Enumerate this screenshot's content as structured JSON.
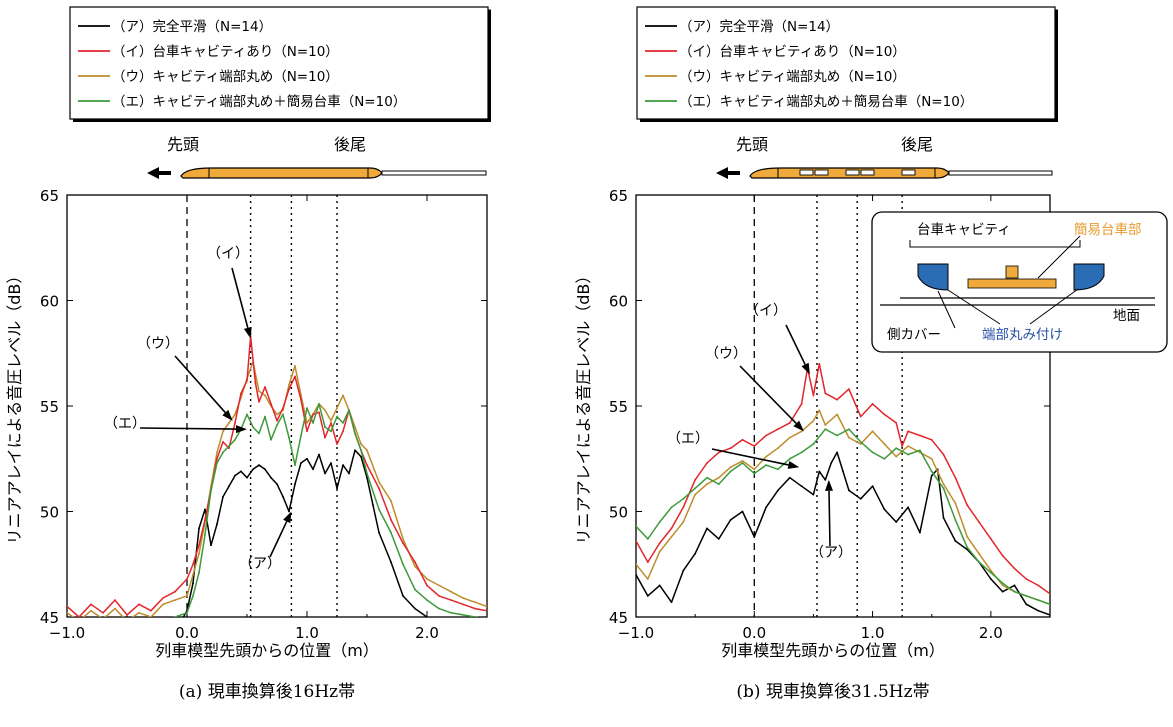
{
  "colors": {
    "A": "#000000",
    "I": "#e3262b",
    "U": "#bf8c2a",
    "E": "#3d9a3b",
    "train": "#f0a93b",
    "cover": "#2a6db5",
    "inset_orange": "#e79a2e",
    "inset_blue": "#2850a8"
  },
  "legend": [
    {
      "key": "A",
      "label": "（ア）完全平滑（N=14）"
    },
    {
      "key": "I",
      "label": "（イ）台車キャビティあり（N=10）"
    },
    {
      "key": "U",
      "label": "（ウ）キャビティ端部丸め（N=10）"
    },
    {
      "key": "E",
      "label": "（エ）キャビティ端部丸め＋簡易台車（N=10）"
    }
  ],
  "train": {
    "head": "先頭",
    "tail": "後尾"
  },
  "ylabel": "リニアアレイによる音圧レベル（dB）",
  "xlabel": "列車模型先頭からの位置（m）",
  "xticks": [
    "−1.0",
    "0.0",
    "1.0",
    "2.0"
  ],
  "yticks": [
    "45",
    "50",
    "55",
    "60",
    "65"
  ],
  "inset": {
    "cavity": "台車キャビティ",
    "bogie": "簡易台車部",
    "ground": "地面",
    "side_cover": "側カバー",
    "rounding": "端部丸み付け"
  },
  "chart_data": [
    {
      "type": "line",
      "caption": "(a) 現車換算後16Hz帯",
      "xlabel": "列車模型先頭からの位置（m）",
      "ylabel": "リニアアレイによる音圧レベル（dB）",
      "xlim": [
        -1.0,
        2.5
      ],
      "ylim": [
        45,
        65
      ],
      "vlines_dashed": [
        0.0
      ],
      "vlines_dotted": [
        0.53,
        0.87,
        1.25
      ],
      "annotations": [
        {
          "text": "（イ）",
          "target": [
            0.53,
            58.2
          ]
        },
        {
          "text": "（ウ）",
          "target": [
            0.38,
            54.3
          ]
        },
        {
          "text": "（エ）",
          "target": [
            0.5,
            53.9
          ]
        },
        {
          "text": "（ア）",
          "target": [
            0.87,
            50.0
          ]
        }
      ],
      "series": [
        {
          "key": "A",
          "name": "（ア）完全平滑（N=14）",
          "x": [
            -1.0,
            -0.7,
            -0.4,
            -0.2,
            -0.05,
            0.0,
            0.05,
            0.1,
            0.15,
            0.2,
            0.25,
            0.3,
            0.35,
            0.4,
            0.45,
            0.5,
            0.55,
            0.6,
            0.65,
            0.7,
            0.75,
            0.8,
            0.85,
            0.9,
            0.95,
            1.0,
            1.05,
            1.1,
            1.15,
            1.2,
            1.25,
            1.3,
            1.35,
            1.4,
            1.45,
            1.5,
            1.55,
            1.6,
            1.7,
            1.8,
            1.9,
            2.0,
            2.1,
            2.2,
            2.3,
            2.4,
            2.5
          ],
          "y": [
            44.5,
            44.5,
            44.5,
            44.5,
            44.8,
            45.3,
            46.6,
            49.2,
            50.1,
            48.4,
            49.4,
            50.7,
            51.2,
            51.7,
            51.9,
            51.6,
            52.0,
            52.2,
            52.0,
            51.6,
            51.3,
            50.7,
            50.0,
            51.3,
            52.3,
            52.5,
            52.0,
            52.7,
            51.8,
            52.3,
            51.1,
            52.2,
            51.8,
            52.9,
            52.6,
            51.6,
            50.3,
            49.0,
            47.6,
            46.0,
            45.4,
            45.0,
            44.7,
            44.7,
            44.6,
            44.6,
            44.5
          ]
        },
        {
          "key": "I",
          "name": "（イ）台車キャビティあり（N=10）",
          "x": [
            -1.0,
            -0.9,
            -0.8,
            -0.7,
            -0.6,
            -0.5,
            -0.4,
            -0.3,
            -0.2,
            -0.1,
            0.0,
            0.05,
            0.1,
            0.15,
            0.2,
            0.25,
            0.3,
            0.35,
            0.4,
            0.45,
            0.5,
            0.53,
            0.57,
            0.6,
            0.65,
            0.7,
            0.75,
            0.8,
            0.85,
            0.9,
            0.95,
            1.0,
            1.05,
            1.1,
            1.15,
            1.2,
            1.25,
            1.3,
            1.35,
            1.4,
            1.45,
            1.5,
            1.6,
            1.7,
            1.8,
            1.9,
            2.0,
            2.1,
            2.2,
            2.3,
            2.4,
            2.5
          ],
          "y": [
            45.5,
            45.0,
            45.6,
            45.2,
            45.8,
            45.1,
            45.6,
            45.3,
            45.9,
            46.2,
            46.8,
            47.5,
            48.4,
            49.6,
            51.0,
            52.5,
            53.3,
            53.0,
            54.2,
            55.6,
            56.2,
            58.3,
            56.1,
            55.2,
            55.9,
            55.1,
            54.3,
            54.9,
            55.8,
            56.4,
            55.3,
            53.8,
            54.6,
            54.7,
            53.5,
            54.2,
            53.2,
            53.8,
            54.8,
            53.7,
            52.9,
            52.2,
            51.1,
            49.6,
            48.5,
            47.6,
            46.5,
            46.0,
            45.8,
            45.6,
            45.4,
            45.3
          ]
        },
        {
          "key": "U",
          "name": "（ウ）キャビティ端部丸め（N=10）",
          "x": [
            -1.0,
            -0.9,
            -0.8,
            -0.7,
            -0.6,
            -0.5,
            -0.4,
            -0.3,
            -0.2,
            -0.1,
            0.0,
            0.05,
            0.1,
            0.15,
            0.2,
            0.25,
            0.3,
            0.35,
            0.4,
            0.45,
            0.5,
            0.55,
            0.6,
            0.65,
            0.7,
            0.75,
            0.8,
            0.85,
            0.9,
            0.95,
            1.0,
            1.05,
            1.1,
            1.15,
            1.2,
            1.25,
            1.3,
            1.35,
            1.4,
            1.45,
            1.5,
            1.6,
            1.7,
            1.8,
            1.9,
            2.0,
            2.1,
            2.2,
            2.3,
            2.4,
            2.5
          ],
          "y": [
            45.2,
            44.8,
            45.3,
            44.9,
            45.4,
            44.8,
            45.2,
            45.0,
            45.6,
            45.8,
            46.0,
            47.0,
            48.0,
            49.5,
            51.2,
            52.8,
            53.8,
            54.2,
            54.6,
            55.4,
            56.3,
            57.1,
            55.7,
            55.5,
            55.0,
            54.6,
            54.8,
            56.0,
            56.9,
            55.5,
            54.2,
            54.6,
            55.1,
            54.8,
            54.3,
            54.9,
            55.5,
            54.8,
            54.0,
            53.2,
            52.9,
            51.4,
            50.5,
            48.7,
            47.4,
            46.8,
            46.5,
            46.2,
            45.9,
            45.7,
            45.5
          ]
        },
        {
          "key": "E",
          "name": "（エ）キャビティ端部丸め＋簡易台車（N=10）",
          "x": [
            -1.0,
            -0.8,
            -0.6,
            -0.4,
            -0.2,
            -0.1,
            0.0,
            0.05,
            0.1,
            0.15,
            0.2,
            0.25,
            0.3,
            0.35,
            0.4,
            0.45,
            0.5,
            0.55,
            0.6,
            0.65,
            0.7,
            0.75,
            0.8,
            0.85,
            0.9,
            0.95,
            1.0,
            1.05,
            1.1,
            1.15,
            1.2,
            1.25,
            1.3,
            1.35,
            1.4,
            1.45,
            1.5,
            1.6,
            1.7,
            1.8,
            1.9,
            2.0,
            2.1,
            2.2,
            2.3,
            2.4,
            2.5
          ],
          "y": [
            44.6,
            44.6,
            44.7,
            44.7,
            44.8,
            45.0,
            45.2,
            46.0,
            47.1,
            48.9,
            51.0,
            52.3,
            52.8,
            53.1,
            53.4,
            53.9,
            54.6,
            54.0,
            53.7,
            54.5,
            53.4,
            54.1,
            54.6,
            53.5,
            52.2,
            53.6,
            54.9,
            54.2,
            55.1,
            54.0,
            53.8,
            54.5,
            54.2,
            54.8,
            53.7,
            52.9,
            51.8,
            50.1,
            49.0,
            47.5,
            46.3,
            45.8,
            45.4,
            45.2,
            45.1,
            45.0,
            44.9
          ]
        }
      ]
    },
    {
      "type": "line",
      "caption": "(b) 現車換算後31.5Hz帯",
      "xlabel": "列車模型先頭からの位置（m）",
      "ylabel": "リニアアレイによる音圧レベル（dB）",
      "xlim": [
        -1.0,
        2.5
      ],
      "ylim": [
        45,
        65
      ],
      "vlines_dashed": [
        0.0
      ],
      "vlines_dotted": [
        0.53,
        0.87,
        1.25
      ],
      "annotations": [
        {
          "text": "（イ）",
          "target": [
            0.47,
            56.5
          ]
        },
        {
          "text": "（ウ）",
          "target": [
            0.42,
            53.8
          ]
        },
        {
          "text": "（エ）",
          "target": [
            0.38,
            52.1
          ]
        },
        {
          "text": "（ア）",
          "target": [
            0.63,
            51.5
          ]
        }
      ],
      "series": [
        {
          "key": "A",
          "name": "（ア）完全平滑（N=14）",
          "x": [
            -1.0,
            -0.9,
            -0.8,
            -0.7,
            -0.6,
            -0.5,
            -0.4,
            -0.3,
            -0.2,
            -0.1,
            0.0,
            0.1,
            0.2,
            0.3,
            0.4,
            0.5,
            0.55,
            0.6,
            0.65,
            0.7,
            0.75,
            0.8,
            0.9,
            1.0,
            1.1,
            1.2,
            1.3,
            1.4,
            1.5,
            1.55,
            1.6,
            1.7,
            1.8,
            1.9,
            2.0,
            2.1,
            2.2,
            2.3,
            2.4,
            2.5
          ],
          "y": [
            47.0,
            46.0,
            46.5,
            45.7,
            47.2,
            48.0,
            49.2,
            48.7,
            49.6,
            50.0,
            48.8,
            50.2,
            51.0,
            51.6,
            51.2,
            50.8,
            51.9,
            51.5,
            52.3,
            52.8,
            51.9,
            51.0,
            50.6,
            51.2,
            50.1,
            49.5,
            50.2,
            49.0,
            51.7,
            52.0,
            49.7,
            48.6,
            48.2,
            47.6,
            46.8,
            46.2,
            46.5,
            45.6,
            45.3,
            45.1
          ]
        },
        {
          "key": "I",
          "name": "（イ）台車キャビティあり（N=10）",
          "x": [
            -1.0,
            -0.9,
            -0.8,
            -0.7,
            -0.6,
            -0.5,
            -0.4,
            -0.3,
            -0.2,
            -0.1,
            0.0,
            0.1,
            0.2,
            0.3,
            0.4,
            0.45,
            0.5,
            0.55,
            0.6,
            0.7,
            0.8,
            0.9,
            1.0,
            1.1,
            1.2,
            1.25,
            1.3,
            1.4,
            1.5,
            1.6,
            1.7,
            1.8,
            1.9,
            2.0,
            2.1,
            2.2,
            2.3,
            2.4,
            2.5
          ],
          "y": [
            48.6,
            47.6,
            48.5,
            49.2,
            50.2,
            51.5,
            52.3,
            52.8,
            53.0,
            53.4,
            53.1,
            53.6,
            53.9,
            54.2,
            55.1,
            56.8,
            55.5,
            57.0,
            55.6,
            55.3,
            55.8,
            54.5,
            55.1,
            54.6,
            54.2,
            53.1,
            53.8,
            53.6,
            53.4,
            52.7,
            51.6,
            50.3,
            49.5,
            48.7,
            47.9,
            47.3,
            46.8,
            46.5,
            46.1
          ]
        },
        {
          "key": "U",
          "name": "（ウ）キャビティ端部丸め（N=10）",
          "x": [
            -1.0,
            -0.9,
            -0.8,
            -0.7,
            -0.6,
            -0.5,
            -0.4,
            -0.3,
            -0.2,
            -0.1,
            0.0,
            0.1,
            0.2,
            0.3,
            0.4,
            0.5,
            0.55,
            0.6,
            0.7,
            0.8,
            0.9,
            1.0,
            1.1,
            1.2,
            1.3,
            1.4,
            1.5,
            1.6,
            1.7,
            1.8,
            1.9,
            2.0,
            2.1,
            2.2,
            2.3,
            2.4,
            2.5
          ],
          "y": [
            47.5,
            46.8,
            48.1,
            48.8,
            49.5,
            50.8,
            51.3,
            51.6,
            52.1,
            52.4,
            52.0,
            52.6,
            53.0,
            53.5,
            53.8,
            54.3,
            54.8,
            54.1,
            54.6,
            53.5,
            53.2,
            53.8,
            53.2,
            52.6,
            53.1,
            52.8,
            52.5,
            51.3,
            50.4,
            48.8,
            48.0,
            47.2,
            46.5,
            46.2,
            46.0,
            45.8,
            45.6
          ]
        },
        {
          "key": "E",
          "name": "（エ）キャビティ端部丸め＋簡易台車（N=10）",
          "x": [
            -1.0,
            -0.9,
            -0.8,
            -0.7,
            -0.6,
            -0.5,
            -0.4,
            -0.3,
            -0.2,
            -0.1,
            0.0,
            0.1,
            0.2,
            0.3,
            0.4,
            0.5,
            0.6,
            0.7,
            0.8,
            0.9,
            1.0,
            1.1,
            1.2,
            1.3,
            1.4,
            1.5,
            1.6,
            1.7,
            1.8,
            1.9,
            2.0,
            2.1,
            2.2,
            2.3,
            2.4,
            2.5
          ],
          "y": [
            49.3,
            48.7,
            49.5,
            50.2,
            50.6,
            51.1,
            51.6,
            51.3,
            51.9,
            52.3,
            51.8,
            52.2,
            52.0,
            52.5,
            52.8,
            53.2,
            53.9,
            53.6,
            53.9,
            53.3,
            52.8,
            52.5,
            53.0,
            52.7,
            52.9,
            51.9,
            51.1,
            49.6,
            48.3,
            47.6,
            47.1,
            46.6,
            46.2,
            46.0,
            45.8,
            45.6
          ]
        }
      ]
    }
  ]
}
